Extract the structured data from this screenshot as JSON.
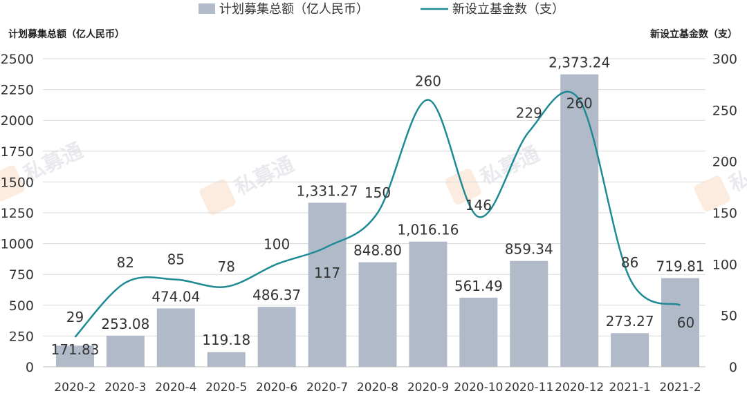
{
  "legend": {
    "bar_label": "计划募集总额（亿人民币）",
    "line_label": "新设立基金数（支）"
  },
  "axis_titles": {
    "left": "计划募集总额（亿人民币）",
    "right": "新设立基金数（支）"
  },
  "watermark": {
    "text": "私募通"
  },
  "colors": {
    "bar": "#b0bac8",
    "line": "#1d8a94",
    "grid": "#d9d9d9"
  },
  "chart_data": {
    "type": "bar",
    "categories": [
      "2020-2",
      "2020-3",
      "2020-4",
      "2020-5",
      "2020-6",
      "2020-7",
      "2020-8",
      "2020-9",
      "2020-10",
      "2020-11",
      "2020-12",
      "2021-1",
      "2021-2"
    ],
    "series": [
      {
        "name": "计划募集总额（亿人民币）",
        "type": "bar",
        "axis": "left",
        "values": [
          171.83,
          253.08,
          474.04,
          119.18,
          486.37,
          1331.27,
          848.8,
          1016.16,
          561.49,
          859.34,
          2373.24,
          273.27,
          719.81
        ],
        "labels": [
          "171.83",
          "253.08",
          "474.04",
          "119.18",
          "486.37",
          "1,331.27",
          "848.80",
          "1,016.16",
          "561.49",
          "859.34",
          "2,373.24",
          "273.27",
          "719.81"
        ]
      },
      {
        "name": "新设立基金数（支）",
        "type": "line",
        "smooth": true,
        "axis": "right",
        "values": [
          29,
          82,
          85,
          78,
          100,
          117,
          150,
          260,
          146,
          229,
          260,
          86,
          60
        ],
        "labels": [
          "29",
          "82",
          "85",
          "78",
          "100",
          "117",
          "150",
          "260",
          "146",
          "229",
          "260",
          "86",
          "60"
        ]
      }
    ],
    "y_left": {
      "ylim": [
        0,
        2500
      ],
      "ticks": [
        "0",
        "250",
        "500",
        "750",
        "1000",
        "1250",
        "1500",
        "1750",
        "2000",
        "2250",
        "2500"
      ]
    },
    "y_right": {
      "ylim": [
        0,
        300
      ],
      "ticks": [
        "0",
        "50",
        "100",
        "150",
        "200",
        "250",
        "300"
      ]
    },
    "grid": true,
    "legend_position": "top-center"
  }
}
